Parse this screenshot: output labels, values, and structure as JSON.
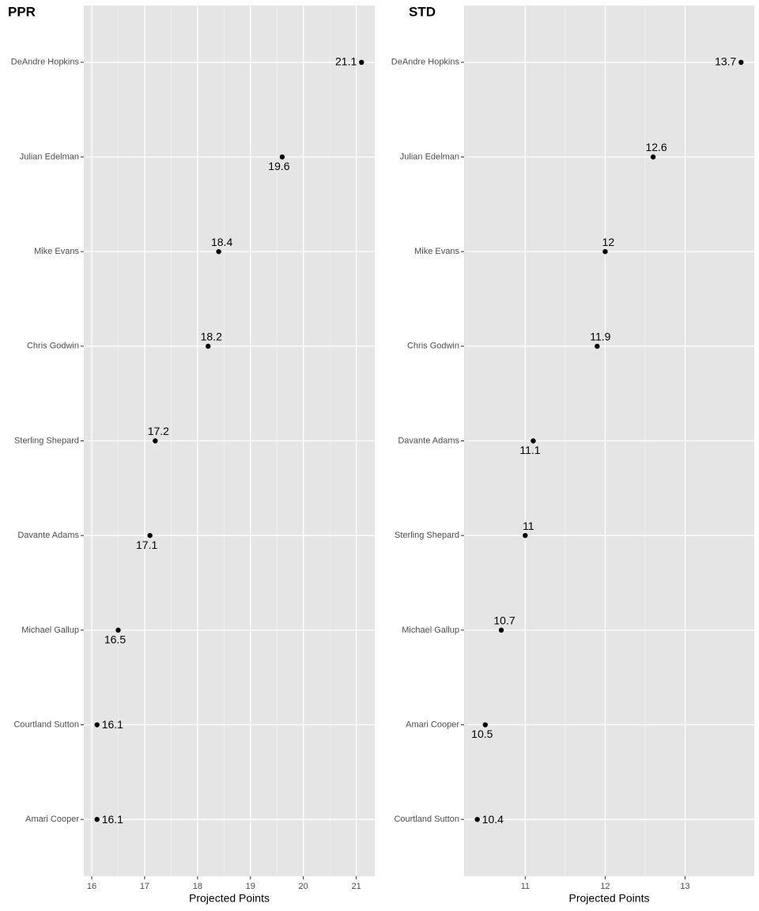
{
  "chart_data": [
    {
      "type": "dot",
      "title": "PPR",
      "x_label": "Projected Points",
      "categories": [
        "DeAndre Hopkins",
        "Julian Edelman",
        "Mike Evans",
        "Chris Godwin",
        "Sterling Shepard",
        "Davante Adams",
        "Michael Gallup",
        "Courtland Sutton",
        "Amari Cooper"
      ],
      "values": [
        21.1,
        19.6,
        18.4,
        18.2,
        17.2,
        17.1,
        16.5,
        16.1,
        16.1
      ],
      "color": "#000000",
      "xlim": [
        15.85,
        21.35
      ],
      "xticks": [
        16,
        17,
        18,
        19,
        20,
        21
      ],
      "grid": true
    },
    {
      "type": "dot",
      "title": "STD",
      "x_label": "Projected Points",
      "categories": [
        "DeAndre Hopkins",
        "Julian Edelman",
        "Mike Evans",
        "Chris Godwin",
        "Davante Adams",
        "Sterling Shepard",
        "Michael Gallup",
        "Amari Cooper",
        "Courtland Sutton"
      ],
      "values": [
        13.7,
        12.6,
        12,
        11.9,
        11.1,
        11,
        10.7,
        10.5,
        10.4
      ],
      "color": "#000000",
      "xlim": [
        10.235,
        13.865
      ],
      "xticks": [
        11,
        12,
        13
      ],
      "grid": true
    }
  ]
}
